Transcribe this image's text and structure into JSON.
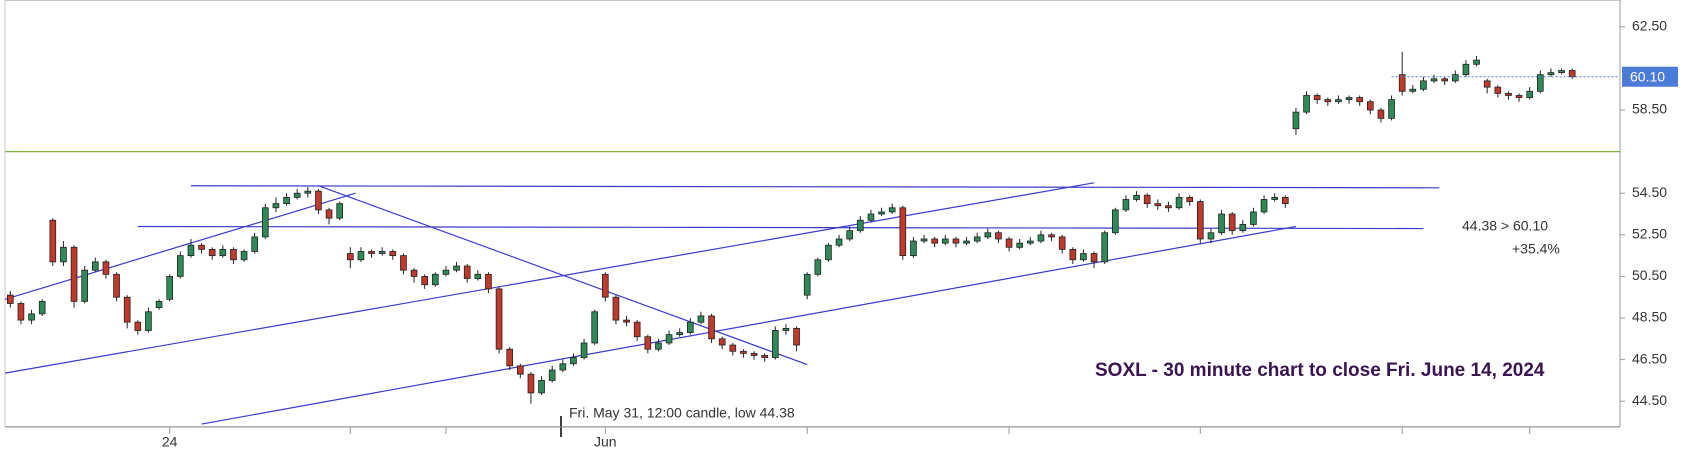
{
  "chart_data": {
    "type": "candlestick",
    "title": "SOXL - 30 minute chart to close Fri. June 14, 2024",
    "open": [
      49.6,
      49.2,
      48.4,
      48.7,
      53.2,
      51.2,
      51.9,
      49.3,
      50.8,
      51.2,
      50.6,
      49.5,
      48.3,
      47.9,
      49.0,
      49.4,
      50.5,
      51.5,
      52.0,
      51.8,
      51.5,
      51.8,
      51.3,
      51.7,
      52.4,
      53.8,
      54.0,
      54.3,
      54.5,
      54.6,
      53.7,
      53.3,
      51.6,
      51.3,
      51.7,
      51.6,
      51.7,
      51.5,
      50.8,
      50.5,
      50.1,
      50.6,
      50.8,
      51.0,
      50.4,
      50.6,
      49.9,
      47.0,
      46.2,
      45.8,
      44.9,
      45.5,
      46.0,
      46.3,
      46.6,
      47.3,
      50.6,
      49.5,
      48.4,
      48.3,
      47.6,
      47.0,
      47.3,
      47.7,
      47.8,
      48.3,
      48.6,
      47.5,
      47.2,
      46.9,
      46.8,
      46.7,
      46.6,
      47.9,
      48.0,
      49.6,
      50.6,
      51.3,
      52.0,
      52.3,
      52.7,
      53.2,
      53.5,
      53.6,
      53.8,
      51.5,
      52.2,
      52.3,
      52.1,
      52.3,
      52.1,
      52.2,
      52.4,
      52.6,
      52.3,
      51.9,
      52.1,
      52.2,
      52.5,
      52.4,
      51.8,
      51.3,
      51.6,
      51.2,
      52.6,
      53.7,
      54.2,
      54.4,
      54.0,
      53.9,
      53.8,
      54.3,
      54.1,
      52.3,
      52.6,
      53.5,
      52.7,
      53.0,
      53.6,
      54.2,
      54.3,
      57.6,
      58.4,
      59.2,
      59.0,
      58.9,
      59.0,
      59.1,
      58.9,
      58.5,
      58.1,
      60.2,
      59.4,
      59.5,
      59.9,
      60.0,
      59.9,
      60.2,
      60.7,
      59.9,
      59.6,
      59.3,
      59.2,
      59.1,
      59.4,
      60.2,
      60.3,
      60.4
    ],
    "high": [
      49.8,
      49.3,
      48.9,
      49.4,
      53.3,
      52.2,
      52.0,
      51.0,
      51.4,
      51.3,
      50.7,
      49.6,
      48.4,
      49.0,
      49.4,
      50.6,
      51.7,
      52.3,
      52.1,
      51.9,
      52.0,
      51.9,
      51.8,
      52.6,
      54.0,
      54.3,
      54.5,
      54.7,
      54.8,
      54.7,
      53.8,
      54.1,
      51.9,
      51.9,
      51.8,
      51.9,
      51.8,
      51.6,
      50.9,
      50.6,
      50.7,
      51.0,
      51.2,
      51.1,
      50.8,
      50.7,
      50.0,
      47.1,
      46.3,
      45.9,
      45.7,
      46.2,
      46.5,
      46.8,
      47.5,
      48.9,
      50.7,
      49.6,
      48.6,
      48.4,
      47.7,
      47.5,
      47.9,
      48.0,
      48.5,
      48.8,
      48.7,
      47.6,
      47.3,
      47.0,
      46.9,
      46.8,
      48.1,
      48.2,
      48.1,
      50.7,
      51.4,
      52.1,
      52.5,
      52.9,
      53.4,
      53.7,
      53.8,
      54.0,
      53.9,
      52.4,
      52.5,
      52.4,
      52.5,
      52.4,
      52.4,
      52.6,
      52.8,
      52.7,
      52.4,
      52.3,
      52.4,
      52.7,
      52.6,
      52.5,
      51.9,
      51.8,
      51.7,
      52.7,
      53.8,
      54.4,
      54.6,
      54.5,
      54.2,
      54.1,
      54.5,
      54.4,
      54.2,
      52.8,
      53.7,
      53.6,
      53.2,
      53.8,
      54.4,
      54.5,
      54.4,
      58.6,
      59.4,
      59.3,
      59.1,
      59.2,
      59.2,
      59.2,
      59.0,
      58.6,
      59.2,
      61.3,
      59.7,
      60.1,
      60.2,
      60.1,
      60.4,
      60.9,
      61.1,
      60.0,
      59.7,
      59.4,
      59.3,
      59.6,
      60.4,
      60.5,
      60.5,
      60.5
    ],
    "low": [
      49.0,
      48.2,
      48.2,
      48.6,
      51.0,
      51.0,
      49.0,
      49.2,
      50.7,
      50.4,
      49.3,
      48.0,
      47.7,
      47.8,
      48.9,
      49.3,
      50.4,
      51.4,
      51.6,
      51.3,
      51.4,
      51.1,
      51.2,
      51.6,
      52.3,
      53.6,
      53.9,
      54.2,
      54.3,
      53.5,
      53.0,
      53.2,
      50.9,
      51.2,
      51.4,
      51.5,
      51.3,
      50.6,
      50.2,
      49.9,
      50.0,
      50.5,
      50.7,
      50.2,
      50.3,
      49.7,
      46.8,
      46.0,
      45.6,
      44.38,
      44.8,
      45.4,
      45.9,
      46.2,
      46.5,
      47.2,
      49.3,
      48.2,
      48.1,
      47.4,
      46.8,
      46.9,
      47.2,
      47.6,
      47.7,
      48.2,
      47.3,
      47.0,
      46.7,
      46.6,
      46.5,
      46.4,
      46.5,
      47.7,
      46.9,
      49.4,
      50.5,
      51.2,
      51.9,
      52.2,
      52.6,
      53.1,
      53.4,
      53.5,
      51.3,
      51.4,
      52.1,
      51.9,
      52.0,
      51.9,
      52.0,
      52.1,
      52.3,
      52.1,
      51.7,
      51.8,
      52.0,
      52.1,
      52.2,
      51.6,
      51.1,
      51.2,
      50.9,
      51.1,
      52.5,
      53.6,
      54.1,
      53.8,
      53.7,
      53.6,
      53.7,
      53.9,
      52.1,
      52.1,
      52.5,
      52.5,
      52.6,
      52.9,
      53.5,
      54.1,
      53.8,
      57.3,
      58.3,
      58.8,
      58.7,
      58.8,
      58.8,
      58.7,
      58.3,
      57.9,
      58.0,
      59.2,
      59.3,
      59.4,
      59.8,
      59.7,
      59.8,
      60.1,
      60.6,
      59.3,
      59.1,
      59.0,
      58.9,
      59.0,
      59.3,
      60.1,
      60.2,
      60.0
    ],
    "close": [
      49.2,
      48.4,
      48.7,
      49.3,
      51.2,
      51.9,
      49.3,
      50.8,
      51.2,
      50.6,
      49.5,
      48.3,
      47.9,
      48.8,
      49.3,
      50.5,
      51.5,
      52.0,
      51.8,
      51.5,
      51.8,
      51.3,
      51.7,
      52.4,
      53.8,
      54.0,
      54.3,
      54.5,
      54.6,
      53.7,
      53.3,
      54.0,
      51.3,
      51.7,
      51.6,
      51.7,
      51.5,
      50.8,
      50.5,
      50.1,
      50.6,
      50.8,
      51.0,
      50.4,
      50.6,
      49.9,
      47.0,
      46.2,
      45.8,
      44.9,
      45.5,
      46.0,
      46.3,
      46.6,
      47.3,
      48.8,
      49.5,
      48.4,
      48.3,
      47.6,
      47.0,
      47.3,
      47.7,
      47.8,
      48.3,
      48.6,
      47.5,
      47.2,
      46.9,
      46.8,
      46.7,
      46.6,
      47.9,
      48.0,
      47.2,
      50.6,
      51.3,
      52.0,
      52.3,
      52.7,
      53.2,
      53.5,
      53.6,
      53.8,
      51.5,
      52.2,
      52.3,
      52.1,
      52.3,
      52.1,
      52.2,
      52.4,
      52.6,
      52.3,
      51.9,
      52.1,
      52.2,
      52.5,
      52.4,
      51.8,
      51.3,
      51.6,
      51.2,
      52.6,
      53.7,
      54.2,
      54.4,
      54.0,
      53.9,
      53.8,
      54.3,
      54.1,
      52.3,
      52.6,
      53.5,
      52.7,
      53.0,
      53.6,
      54.2,
      54.3,
      54.0,
      58.4,
      59.2,
      59.0,
      58.9,
      59.0,
      59.1,
      58.9,
      58.5,
      58.1,
      59.0,
      59.4,
      59.5,
      59.9,
      60.0,
      59.9,
      60.2,
      60.7,
      60.9,
      59.6,
      59.3,
      59.2,
      59.1,
      59.4,
      60.2,
      60.3,
      60.4,
      60.1
    ],
    "up_color": "#2e8b57",
    "down_color": "#c0392b",
    "xlim": [
      -0.5,
      151.5
    ],
    "xticks": [
      {
        "value": 15,
        "label": "24"
      },
      {
        "value": 56,
        "label": "Jun"
      }
    ],
    "x_minor_ticks": [
      32,
      41,
      75,
      94,
      112,
      131,
      143
    ],
    "ylim": [
      43.26,
      63.79
    ],
    "yticks": [
      {
        "value": 44.5,
        "label": "44.50"
      },
      {
        "value": 46.5,
        "label": "46.50"
      },
      {
        "value": 48.5,
        "label": "48.50"
      },
      {
        "value": 50.5,
        "label": "50.50"
      },
      {
        "value": 52.5,
        "label": "52.50"
      },
      {
        "value": 54.5,
        "label": "54.50"
      },
      {
        "value": 58.5,
        "label": "58.50"
      },
      {
        "value": 62.5,
        "label": "62.50"
      }
    ],
    "last_price": {
      "value": 60.1,
      "label": "60.10",
      "color": "#4a7bd8",
      "from": 130
    },
    "hline": {
      "value": 56.5,
      "color": "#7cb342"
    },
    "trendline_color": "#3a3acc",
    "trendlines": [
      {
        "x": [
          17,
          134.5
        ],
        "y": [
          54.86,
          54.76
        ]
      },
      {
        "x": [
          29,
          75
        ],
        "y": [
          54.86,
          46.26
        ]
      },
      {
        "x": [
          -0.5,
          32.5
        ],
        "y": [
          49.4,
          54.5
        ]
      },
      {
        "x": [
          -0.5,
          102
        ],
        "y": [
          45.85,
          55.0
        ]
      },
      {
        "x": [
          18,
          121
        ],
        "y": [
          43.4,
          52.9
        ]
      },
      {
        "x": [
          12,
          133
        ],
        "y": [
          52.9,
          52.8
        ]
      }
    ],
    "annotations": [
      "44.38 > 60.10",
      "+35.4%",
      "Fri. May 31, 12:00 candle, low 44.38"
    ]
  }
}
